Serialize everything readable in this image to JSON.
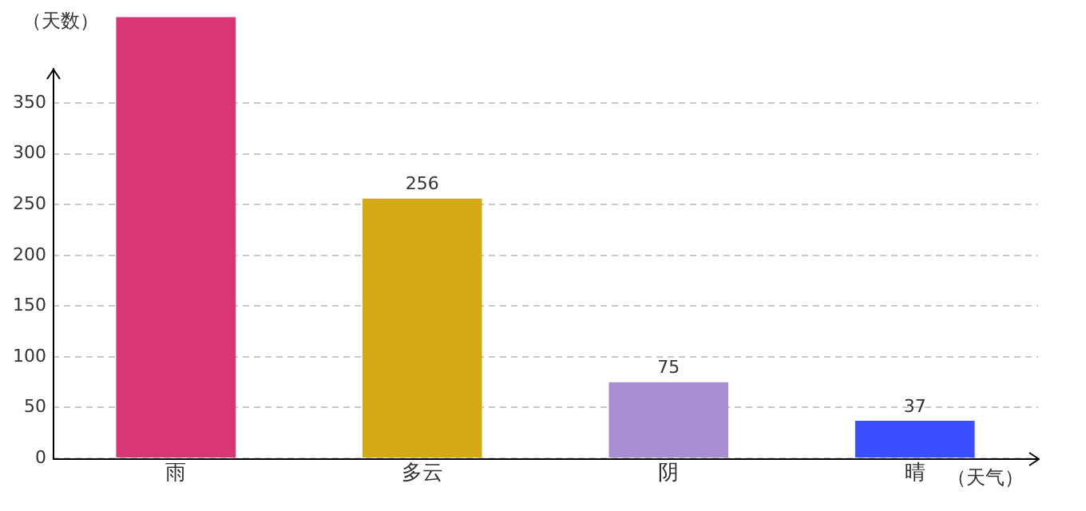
{
  "chart_data": {
    "type": "bar",
    "ylabel": "（天数）",
    "xlabel": "（天气）",
    "categories": [
      "雨",
      "多云",
      "阴",
      "晴"
    ],
    "values": [
      435,
      256,
      75,
      37
    ],
    "colors": [
      "#da3676",
      "#d3aa16",
      "#a78ed3",
      "#3a4ffd"
    ],
    "value_labels": [
      null,
      "256",
      "75",
      "37"
    ],
    "ylim": [
      0,
      435
    ],
    "yticks": [
      0,
      50,
      100,
      150,
      200,
      250,
      300,
      350
    ],
    "grid": "y",
    "legend": false
  }
}
